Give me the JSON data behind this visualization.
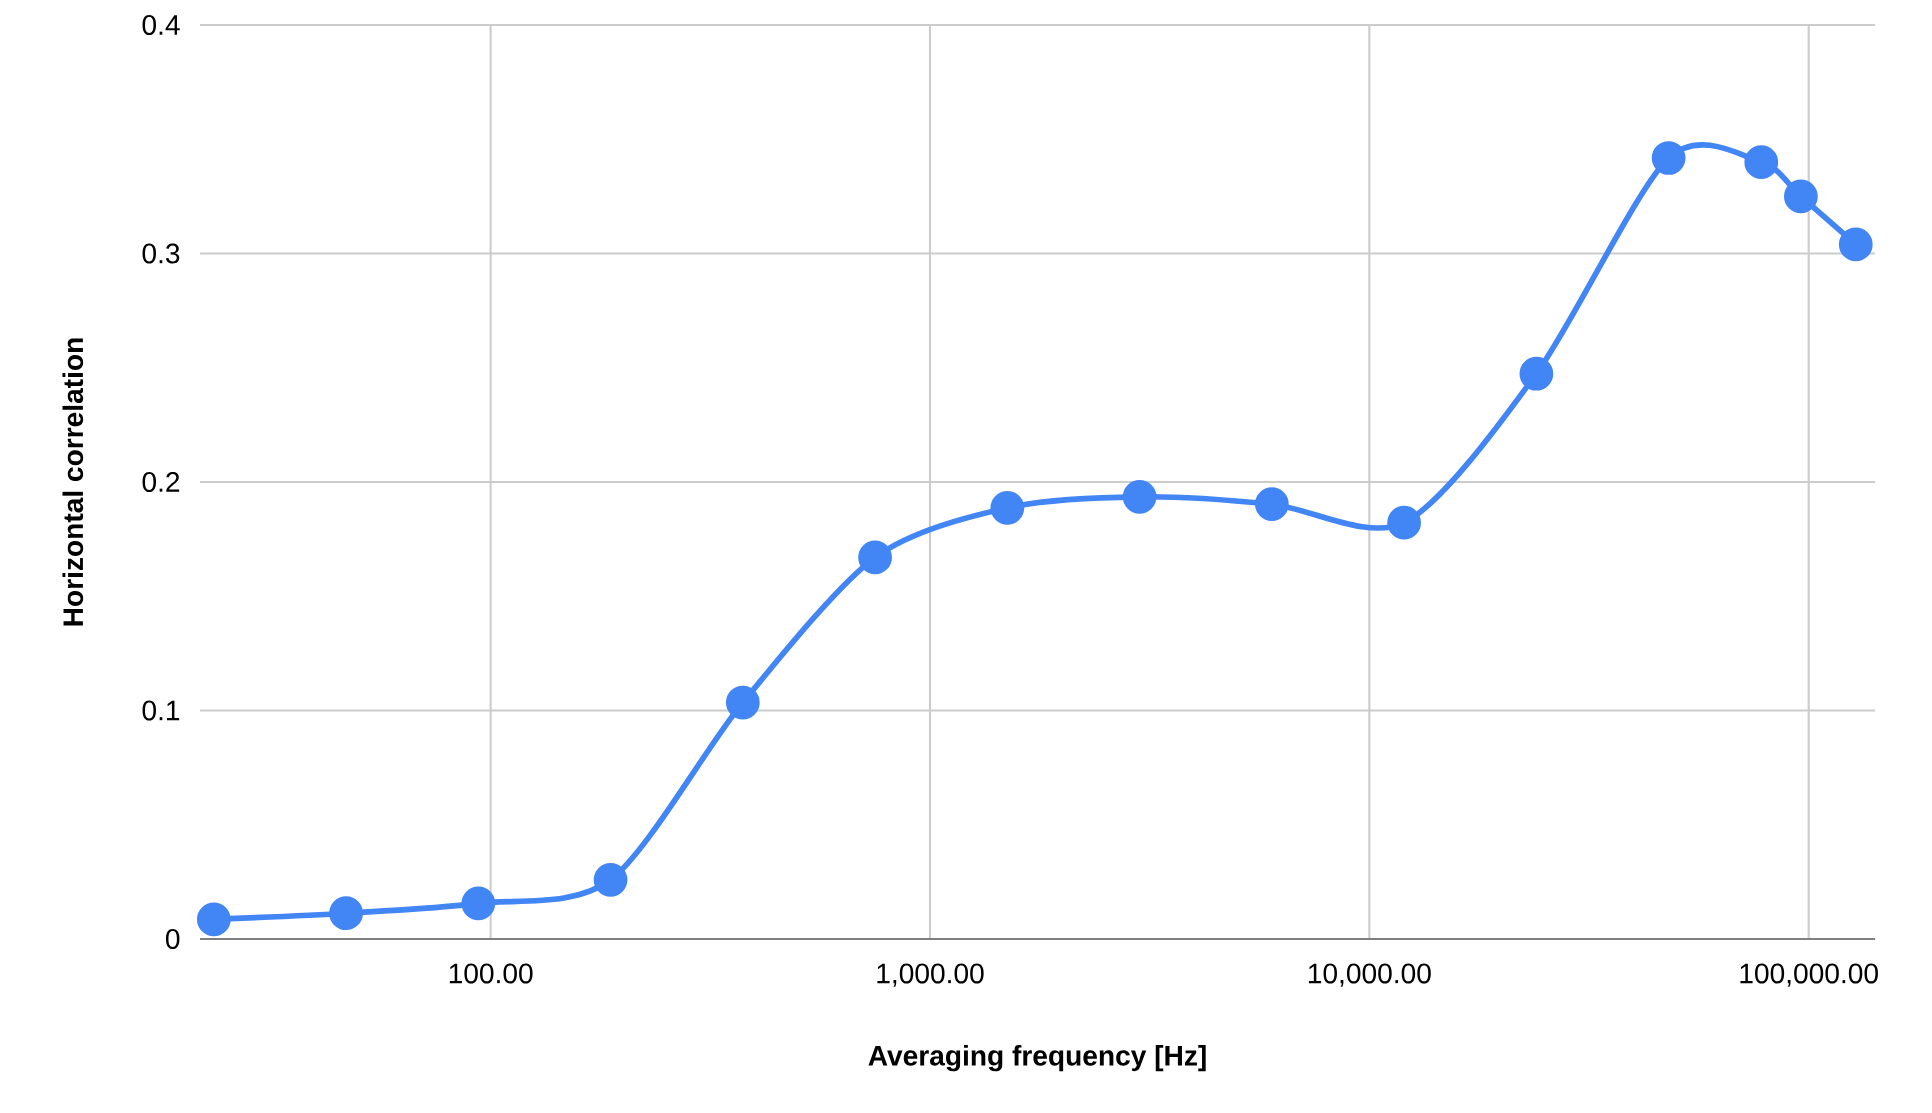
{
  "chart_data": {
    "type": "line",
    "xlabel": "Averaging frequency [Hz]",
    "ylabel": "Horizontal correlation",
    "x": [
      23.4375,
      46.875,
      93.75,
      187.5,
      375,
      750,
      1500,
      3000,
      6000,
      12000,
      24000,
      48000,
      78000,
      96000,
      128000
    ],
    "series": [
      {
        "color": "#4285f4",
        "values": [
          0.0086,
          0.0113,
          0.0156,
          0.0259,
          0.1035,
          0.167,
          0.1887,
          0.1935,
          0.1903,
          0.1822,
          0.2474,
          0.3418,
          0.34,
          0.325,
          0.304
        ]
      }
    ],
    "log": "x",
    "xlim": [
      21.8,
      141600
    ],
    "ylim": [
      0,
      0.4
    ],
    "xticks": [
      {
        "value": 100,
        "label": "100.00"
      },
      {
        "value": 1000,
        "label": "1,000.00"
      },
      {
        "value": 10000,
        "label": "10,000.00"
      },
      {
        "value": 100000,
        "label": "100,000.00"
      }
    ],
    "yticks": [
      0,
      0.1,
      0.2,
      0.3,
      0.4
    ],
    "grid": true,
    "marker": "circle",
    "line_style": "solid"
  }
}
